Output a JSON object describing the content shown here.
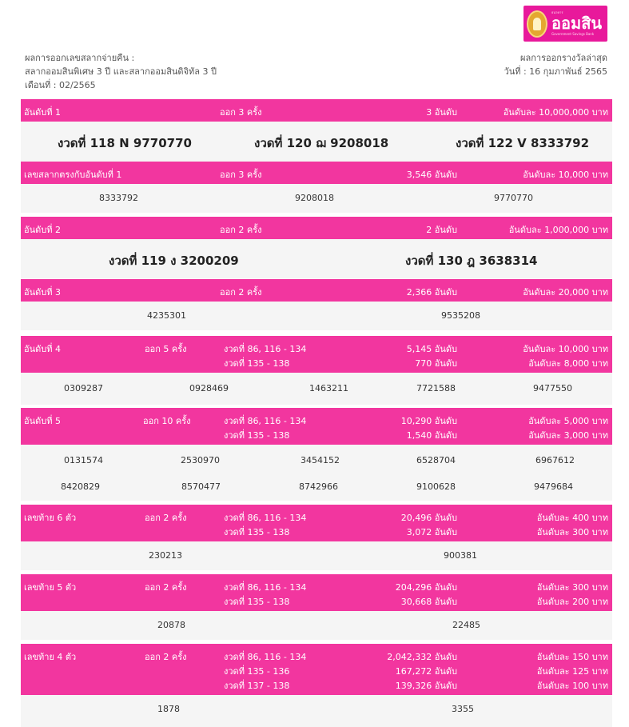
{
  "logo": {
    "small": "ธนาคาร",
    "main": "ออมสิน",
    "sub": "Government Savings Bank"
  },
  "header": {
    "left": [
      "ผลการออกเลขสลากจ่ายคืน :",
      "สลากออมสินพิเศษ 3 ปี และสลากออมสินดิจิทัล 3 ปี",
      "เดือนที่ : 02/2565"
    ],
    "right": [
      "ผลการออกรางวัลล่าสุด",
      "วันที่ : 16 กุมภาพันธ์ 2565"
    ]
  },
  "sections": [
    {
      "title": "อันดับที่ 1",
      "times": "ออก 3 ครั้ง",
      "count": "3 อันดับ",
      "prize": "อันดับละ 10,000,000 บาท"
    },
    {
      "title": "เลขสลากตรงกับอันดับที่ 1",
      "times": "ออก 3 ครั้ง",
      "count": "3,546 อันดับ",
      "prize": "อันดับละ 10,000 บาท"
    },
    {
      "title": "อันดับที่ 2",
      "times": "ออก 2 ครั้ง",
      "count": "2 อันดับ",
      "prize": "อันดับละ 1,000,000 บาท"
    },
    {
      "title": "อันดับที่ 3",
      "times": "ออก 2 ครั้ง",
      "count": "2,366 อันดับ",
      "prize": "อันดับละ 20,000 บาท"
    },
    {
      "title": "อันดับที่ 4",
      "times": "ออก 5 ครั้ง",
      "rounds": [
        "งวดที่ 86, 116 - 134",
        "งวดที่ 135 - 138"
      ],
      "counts": [
        "5,145 อันดับ",
        "770 อันดับ"
      ],
      "prizes": [
        "อันดับละ 10,000 บาท",
        "อันดับละ 8,000 บาท"
      ]
    },
    {
      "title": "อันดับที่ 5",
      "times": "ออก 10 ครั้ง",
      "rounds": [
        "งวดที่ 86, 116 - 134",
        "งวดที่ 135 - 138"
      ],
      "counts": [
        "10,290 อันดับ",
        "1,540 อันดับ"
      ],
      "prizes": [
        "อันดับละ 5,000 บาท",
        "อันดับละ 3,000 บาท"
      ]
    },
    {
      "title": "เลขท้าย 6 ตัว",
      "times": "ออก 2 ครั้ง",
      "rounds": [
        "งวดที่ 86, 116 - 134",
        "งวดที่ 135 - 138"
      ],
      "counts": [
        "20,496 อันดับ",
        "3,072 อันดับ"
      ],
      "prizes": [
        "อันดับละ 400 บาท",
        "อันดับละ 300 บาท"
      ]
    },
    {
      "title": "เลขท้าย 5 ตัว",
      "times": "ออก 2 ครั้ง",
      "rounds": [
        "งวดที่ 86, 116 - 134",
        "งวดที่ 135 - 138"
      ],
      "counts": [
        "204,296 อันดับ",
        "30,668 อันดับ"
      ],
      "prizes": [
        "อันดับละ 300 บาท",
        "อันดับละ 200 บาท"
      ]
    },
    {
      "title": "เลขท้าย 4 ตัว",
      "times": "ออก 2 ครั้ง",
      "rounds": [
        "งวดที่ 86, 116 - 134",
        "งวดที่ 135 - 136",
        "งวดที่ 137 - 138"
      ],
      "counts": [
        "2,042,332 อันดับ",
        "167,272 อันดับ",
        "139,326 อันดับ"
      ],
      "prizes": [
        "อันดับละ 150 บาท",
        "อันดับละ 125 บาท",
        "อันดับละ 100 บาท"
      ]
    }
  ],
  "results": {
    "first": [
      "งวดที่ 118 N 9770770",
      "งวดที่ 120 ฌ 9208018",
      "งวดที่ 122 V 8333792"
    ],
    "match_first": [
      "8333792",
      "9208018",
      "9770770"
    ],
    "second": [
      "งวดที่ 119 ง 3200209",
      "งวดที่ 130 ฎ 3638314"
    ],
    "third": [
      "4235301",
      "9535208"
    ],
    "fourth": [
      "0309287",
      "0928469",
      "1463211",
      "7721588",
      "9477550"
    ],
    "fifth": [
      "0131574",
      "2530970",
      "3454152",
      "6528704",
      "6967612",
      "8420829",
      "8570477",
      "8742966",
      "9100628",
      "9479684"
    ],
    "last6": [
      "230213",
      "900381"
    ],
    "last5": [
      "20878",
      "22485"
    ],
    "last4": [
      "1878",
      "3355"
    ]
  }
}
